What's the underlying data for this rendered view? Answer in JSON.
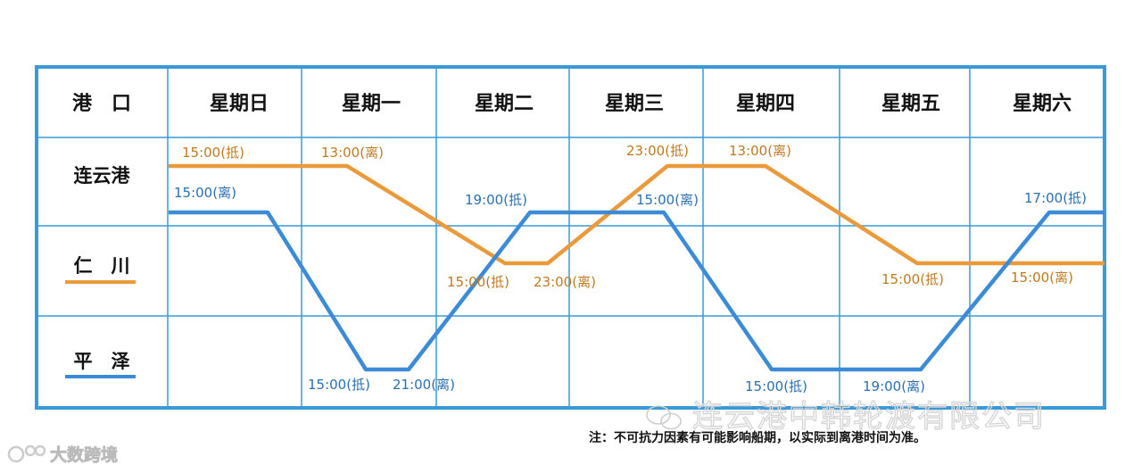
{
  "header": {
    "port_col": "港　口",
    "days": [
      "星期日",
      "星期一",
      "星期二",
      "星期三",
      "星期四",
      "星期五",
      "星期六"
    ]
  },
  "ports": [
    "连云港",
    "仁　川",
    "平　泽"
  ],
  "routes": [
    {
      "key": "incheon",
      "color": "#ea9a3a",
      "legend_port": "仁　川",
      "points": [
        {
          "t": "sun_start",
          "port": "连云港"
        },
        {
          "t": "mon_13",
          "port": "连云港"
        },
        {
          "t": "tue_15",
          "port": "仁　川"
        },
        {
          "t": "tue_23",
          "port": "仁　川"
        },
        {
          "t": "wed_23",
          "port": "连云港"
        },
        {
          "t": "thu_13",
          "port": "连云港"
        },
        {
          "t": "fri_15",
          "port": "仁　川"
        },
        {
          "t": "sat_end",
          "port": "仁　川"
        }
      ],
      "labels": [
        "15:00(抵)",
        "13:00(离)",
        "15:00(抵)",
        "23:00(离)",
        "23:00(抵)",
        "13:00(离)",
        "15:00(抵)",
        "15:00(离)"
      ]
    },
    {
      "key": "pyeongtaek",
      "color": "#3c8bd6",
      "legend_port": "平　泽",
      "points": [
        {
          "t": "sun_start",
          "port": "连云港"
        },
        {
          "t": "sun_15",
          "port": "连云港"
        },
        {
          "t": "mon_15",
          "port": "平　泽"
        },
        {
          "t": "mon_21",
          "port": "平　泽"
        },
        {
          "t": "tue_19",
          "port": "连云港"
        },
        {
          "t": "wed_15",
          "port": "连云港"
        },
        {
          "t": "thu_15",
          "port": "平　泽"
        },
        {
          "t": "fri_19",
          "port": "平　泽"
        },
        {
          "t": "sat_17",
          "port": "连云港"
        },
        {
          "t": "sat_end",
          "port": "连云港"
        }
      ],
      "labels": [
        "15:00(离)",
        "15:00(抵)",
        "21:00(离)",
        "19:00(抵)",
        "15:00(离)",
        "15:00(抵)",
        "19:00(离)",
        "17:00(抵)"
      ]
    }
  ],
  "note": "注：不可抗力因素有可能影响船期，以实际到离港时间为准。",
  "watermark": "连云港中韩轮渡有限公司",
  "corner_logo": "大数跨境",
  "colors": {
    "grid": "#3a9ad9",
    "orange": "#ea9a3a",
    "blue": "#3c8bd6"
  }
}
